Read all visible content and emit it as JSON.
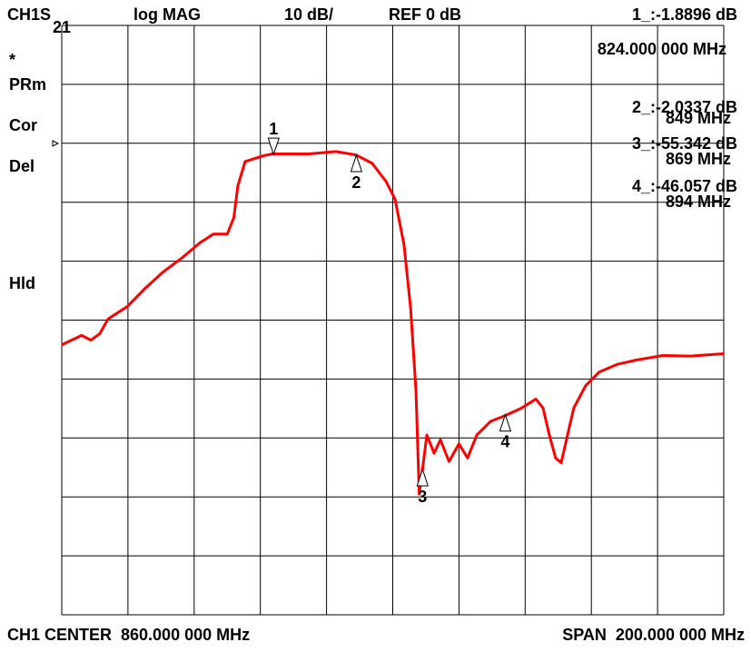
{
  "chart_data": {
    "type": "line",
    "channel": "CH1",
    "param": "S",
    "param_sub": "21",
    "format": "log MAG",
    "scale": "10 dB/",
    "ref": "REF 0 dB",
    "annotations": [
      "*",
      "PRm",
      "Cor",
      "Del",
      "Hld"
    ],
    "readouts": [
      {
        "value": "1_:-1.8896 dB",
        "freq": "824.000 000 MHz"
      },
      {
        "value": "2_:-2.0337 dB",
        "freq": "849 MHz"
      },
      {
        "value": "3_:-55.342 dB",
        "freq": "869 MHz"
      },
      {
        "value": "4_:-46.057 dB",
        "freq": "894 MHz"
      }
    ],
    "center": "CH1 CENTER  860.000 000 MHz",
    "span": "SPAN  200.000 000 MHz",
    "xlim": [
      760,
      960
    ],
    "ylim": [
      -80,
      20
    ],
    "xticks": [
      760,
      780,
      800,
      820,
      840,
      860,
      880,
      900,
      920,
      940,
      960
    ],
    "yticks": [
      -80,
      -70,
      -60,
      -50,
      -40,
      -30,
      -20,
      -10,
      0,
      10,
      20
    ],
    "grid": true,
    "color": "#ff0000",
    "x": [
      760,
      766,
      768.8,
      771.5,
      774,
      779.8,
      785.2,
      790.7,
      796.2,
      801.7,
      805.8,
      810,
      812,
      813.2,
      815.4,
      821,
      823.6,
      834.6,
      842.9,
      849,
      853.8,
      858,
      860.7,
      863.4,
      865.4,
      867,
      868,
      869,
      870.3,
      872.5,
      874.4,
      877,
      880,
      882.6,
      885.4,
      889.5,
      894,
      899,
      903.2,
      905.4,
      907.3,
      909.2,
      910.9,
      912.8,
      914.7,
      918.3,
      922.4,
      927.9,
      933.4,
      941.6,
      949.9,
      960
    ],
    "values": [
      -34.2,
      -32.6,
      -33.4,
      -32.3,
      -29.8,
      -27.7,
      -24.6,
      -21.8,
      -19.5,
      -16.9,
      -15.4,
      -15.4,
      -12.6,
      -7.2,
      -3.1,
      -2.1,
      -1.8,
      -1.8,
      -1.4,
      -2.0,
      -3.4,
      -6.5,
      -9.5,
      -17.2,
      -28,
      -41.8,
      -59.5,
      -55.3,
      -49.5,
      -52.6,
      -50.3,
      -54,
      -51,
      -53.4,
      -49.5,
      -47.2,
      -46.2,
      -44.9,
      -43.4,
      -44.9,
      -49.5,
      -53.4,
      -54.2,
      -49.5,
      -44.9,
      -41.1,
      -38.8,
      -37.5,
      -36.8,
      -36,
      -36.1,
      -35.7
    ],
    "markers": [
      {
        "label": "1",
        "x": 824,
        "y": -1.8896
      },
      {
        "label": "2",
        "x": 849,
        "y": -2.0337
      },
      {
        "label": "3",
        "x": 869,
        "y": -55.342
      },
      {
        "label": "4",
        "x": 894,
        "y": -46.057
      }
    ]
  }
}
